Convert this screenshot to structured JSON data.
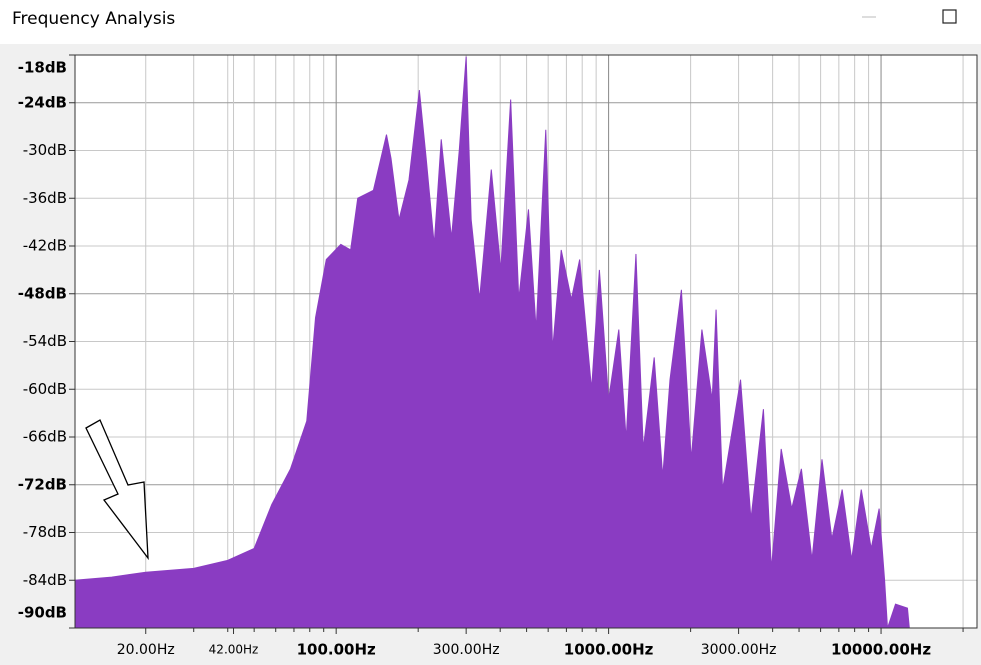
{
  "window": {
    "title": "Frequency Analysis"
  },
  "chart_data": {
    "type": "area",
    "color": "#8a3cc2",
    "xscale": "log",
    "grid": true,
    "xlim": [
      11,
      22500
    ],
    "ylim": [
      -90,
      -18
    ],
    "yticks": [
      {
        "value": -18,
        "label": "-18dB"
      },
      {
        "value": -24,
        "label": "-24dB"
      },
      {
        "value": -30,
        "label": "-30dB"
      },
      {
        "value": -36,
        "label": "-36dB"
      },
      {
        "value": -42,
        "label": "-42dB"
      },
      {
        "value": -48,
        "label": "-48dB"
      },
      {
        "value": -54,
        "label": "-54dB"
      },
      {
        "value": -60,
        "label": "-60dB"
      },
      {
        "value": -66,
        "label": "-66dB"
      },
      {
        "value": -72,
        "label": "-72dB"
      },
      {
        "value": -78,
        "label": "-78dB"
      },
      {
        "value": -84,
        "label": "-84dB"
      },
      {
        "value": -90,
        "label": "-90dB"
      }
    ],
    "xticks": [
      {
        "value": 20,
        "label": "20.00Hz"
      },
      {
        "value": 42,
        "label": "42.00Hz"
      },
      {
        "value": 100,
        "label": "100.00Hz"
      },
      {
        "value": 300,
        "label": "300.00Hz"
      },
      {
        "value": 1000,
        "label": "1000.00Hz"
      },
      {
        "value": 3000,
        "label": "3000.00Hz"
      },
      {
        "value": 10000,
        "label": "10000.00Hz"
      }
    ],
    "xgrid": [
      30,
      40,
      50,
      60,
      70,
      80,
      90,
      200,
      400,
      500,
      600,
      700,
      800,
      900,
      2000,
      4000,
      5000,
      6000,
      7000,
      8000,
      9000,
      20000
    ],
    "x": [
      11,
      15,
      20,
      30,
      40,
      50,
      58,
      68,
      78,
      84,
      92,
      104,
      113,
      120,
      137,
      153,
      159,
      170,
      185,
      202,
      214,
      229,
      243,
      265,
      283,
      300,
      313,
      336,
      371,
      402,
      437,
      468,
      508,
      542,
      588,
      623,
      670,
      730,
      783,
      866,
      925,
      1000,
      1090,
      1160,
      1260,
      1340,
      1470,
      1580,
      1680,
      1850,
      2010,
      2200,
      2400,
      2480,
      2620,
      3050,
      3330,
      3700,
      3960,
      4300,
      4700,
      5100,
      5580,
      6070,
      6600,
      7200,
      7800,
      8460,
      9200,
      9840,
      10300,
      10560,
      11300,
      12500,
      12700
    ],
    "values": [
      -84,
      -83.6,
      -83,
      -82.5,
      -81.5,
      -80,
      -74.5,
      -70,
      -64,
      -51,
      -43.7,
      -41.8,
      -42.5,
      -36,
      -35,
      -28,
      -31,
      -38.7,
      -33.7,
      -22.4,
      -31,
      -41.8,
      -28.6,
      -41,
      -30,
      -18.2,
      -38.7,
      -48.7,
      -32.4,
      -45,
      -23.6,
      -48.7,
      -37.4,
      -52.5,
      -27.4,
      -55,
      -42.5,
      -48.7,
      -43.7,
      -60,
      -45,
      -61.3,
      -52.5,
      -66.3,
      -43,
      -67.5,
      -56,
      -71,
      -58.8,
      -47.5,
      -68.8,
      -52.5,
      -61.3,
      -50,
      -72.6,
      -58.8,
      -76.3,
      -62.5,
      -82.6,
      -67.5,
      -75,
      -70,
      -81.4,
      -68.8,
      -78.8,
      -72.6,
      -81.4,
      -72.6,
      -80,
      -75,
      -83.9,
      -90,
      -87,
      -87.5,
      -90
    ]
  }
}
